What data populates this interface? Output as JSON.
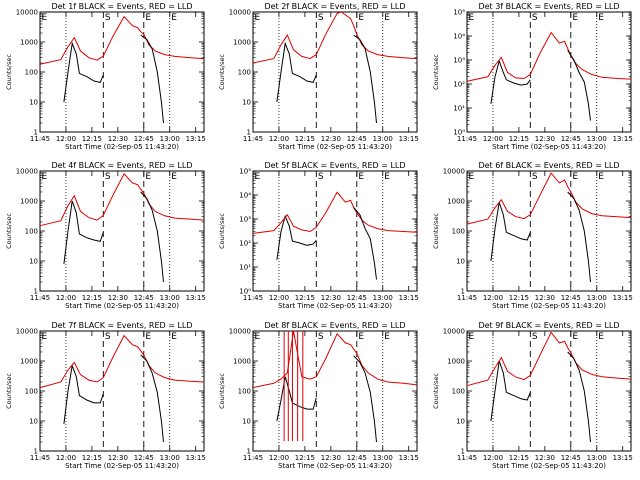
{
  "figure": {
    "xtick_labels": [
      "11:45",
      "12:00",
      "12:15",
      "12:30",
      "12:45",
      "13:00",
      "13:15"
    ],
    "xlabel": "Start Time (02-Sep-05 11:43:20)",
    "ylabel": "Counts/sec",
    "x_range_hours": [
      11.75,
      13.33
    ],
    "dotted_markers": [
      12.0,
      13.0
    ],
    "dashed_markers": [
      12.36,
      12.75
    ],
    "marker_labels": [
      "E",
      "S",
      "E",
      "E"
    ],
    "colors": {
      "events": "#000000",
      "lld": "#dd0000"
    }
  },
  "chart_data": [
    {
      "type": "line",
      "title": "Det 1f BLACK = Events, RED = LLD",
      "ylim": [
        1,
        10000
      ],
      "ytick_labels": [
        "1",
        "10",
        "100",
        "1000",
        "10000"
      ],
      "series": [
        {
          "name": "Events",
          "x": [
            11.98,
            12.02,
            12.06,
            12.1,
            12.13,
            12.2,
            12.27,
            12.33,
            12.36
          ],
          "y": [
            10,
            100,
            900,
            400,
            90,
            70,
            50,
            45,
            80
          ]
        },
        {
          "name": "LLD",
          "x": [
            11.75,
            11.95,
            12.02,
            12.08,
            12.14,
            12.22,
            12.3,
            12.36,
            12.45,
            12.56,
            12.64,
            12.69,
            12.72,
            12.75,
            12.8,
            12.86,
            12.95,
            13.05,
            13.2,
            13.33
          ],
          "y": [
            180,
            260,
            700,
            1400,
            500,
            300,
            250,
            340,
            1500,
            7000,
            3500,
            3000,
            2200,
            1800,
            800,
            500,
            380,
            330,
            300,
            280
          ]
        },
        {
          "name": "Events (decay)",
          "x": [
            12.72,
            12.78,
            12.83,
            12.88,
            12.92,
            12.94
          ],
          "y": [
            1700,
            1200,
            600,
            100,
            10,
            2
          ]
        }
      ]
    },
    {
      "type": "line",
      "title": "Det 2f BLACK = Events, RED = LLD",
      "ylim": [
        1,
        10000
      ],
      "ytick_labels": [
        "1",
        "10",
        "100",
        "1000",
        "10000"
      ],
      "series": [
        {
          "name": "Events",
          "x": [
            11.98,
            12.02,
            12.06,
            12.1,
            12.13,
            12.2,
            12.27,
            12.33,
            12.36
          ],
          "y": [
            10,
            100,
            900,
            400,
            90,
            70,
            50,
            45,
            80
          ]
        },
        {
          "name": "LLD",
          "x": [
            11.75,
            11.95,
            12.02,
            12.08,
            12.14,
            12.22,
            12.3,
            12.36,
            12.45,
            12.56,
            12.6,
            12.64,
            12.69,
            12.72,
            12.75,
            12.8,
            12.86,
            12.95,
            13.05,
            13.2,
            13.33
          ],
          "y": [
            200,
            280,
            800,
            1700,
            550,
            330,
            280,
            380,
            1800,
            9000,
            10000,
            8000,
            6000,
            3500,
            1800,
            800,
            500,
            380,
            330,
            300,
            280
          ]
        },
        {
          "name": "Events (decay)",
          "x": [
            12.72,
            12.78,
            12.83,
            12.88,
            12.92,
            12.94
          ],
          "y": [
            1700,
            1200,
            600,
            100,
            10,
            2
          ]
        }
      ]
    },
    {
      "type": "line",
      "title": "Det 3f BLACK = Events, RED = LLD",
      "ylim": [
        1,
        100000
      ],
      "ytick_labels": [
        "10⁰",
        "10¹",
        "10²",
        "10³",
        "10⁴",
        "10⁵"
      ],
      "series": [
        {
          "name": "Events",
          "x": [
            11.98,
            12.02,
            12.06,
            12.1,
            12.13,
            12.2,
            12.27,
            12.33,
            12.36
          ],
          "y": [
            15,
            200,
            900,
            300,
            150,
            110,
            90,
            100,
            150
          ]
        },
        {
          "name": "LLD",
          "x": [
            11.75,
            11.95,
            12.02,
            12.08,
            12.14,
            12.22,
            12.3,
            12.36,
            12.45,
            12.56,
            12.64,
            12.69,
            12.72,
            12.75,
            12.8,
            12.86,
            12.95,
            13.05,
            13.2,
            13.33
          ],
          "y": [
            130,
            200,
            600,
            1300,
            300,
            180,
            170,
            250,
            1800,
            14000,
            5000,
            6000,
            3000,
            1500,
            700,
            400,
            250,
            190,
            170,
            160
          ]
        },
        {
          "name": "Events (decay)",
          "x": [
            12.72,
            12.78,
            12.83,
            12.88,
            12.92,
            12.94
          ],
          "y": [
            2500,
            1000,
            300,
            120,
            15,
            3
          ]
        }
      ]
    },
    {
      "type": "line",
      "title": "Det 4f BLACK = Events, RED = LLD",
      "ylim": [
        1,
        10000
      ],
      "ytick_labels": [
        "1",
        "10",
        "100",
        "1000",
        "10000"
      ],
      "series": [
        {
          "name": "Events",
          "x": [
            11.98,
            12.02,
            12.06,
            12.1,
            12.13,
            12.2,
            12.27,
            12.33,
            12.36
          ],
          "y": [
            8,
            100,
            1000,
            400,
            80,
            60,
            50,
            45,
            90
          ]
        },
        {
          "name": "LLD",
          "x": [
            11.75,
            11.95,
            12.02,
            12.08,
            12.14,
            12.22,
            12.3,
            12.36,
            12.45,
            12.56,
            12.64,
            12.69,
            12.72,
            12.75,
            12.8,
            12.86,
            12.95,
            13.05,
            13.2,
            13.33
          ],
          "y": [
            150,
            220,
            700,
            1500,
            450,
            280,
            230,
            330,
            1500,
            8000,
            4000,
            3500,
            2500,
            1800,
            800,
            450,
            320,
            270,
            250,
            230
          ]
        },
        {
          "name": "Events (decay)",
          "x": [
            12.72,
            12.78,
            12.83,
            12.88,
            12.92,
            12.94
          ],
          "y": [
            2000,
            1200,
            500,
            100,
            10,
            2
          ]
        }
      ]
    },
    {
      "type": "line",
      "title": "Det 5f BLACK = Events, RED = LLD",
      "ylim": [
        1,
        100000
      ],
      "ytick_labels": [
        "10⁰",
        "10¹",
        "10²",
        "10³",
        "10⁴",
        "10⁵"
      ],
      "series": [
        {
          "name": "Events",
          "x": [
            11.98,
            12.02,
            12.06,
            12.1,
            12.13,
            12.2,
            12.27,
            12.33,
            12.36
          ],
          "y": [
            20,
            300,
            1300,
            500,
            120,
            100,
            80,
            90,
            130
          ]
        },
        {
          "name": "LLD",
          "x": [
            11.75,
            11.95,
            12.02,
            12.08,
            12.14,
            12.22,
            12.3,
            12.36,
            12.45,
            12.56,
            12.64,
            12.69,
            12.72,
            12.75,
            12.8,
            12.86,
            12.95,
            13.05,
            13.2,
            13.33
          ],
          "y": [
            250,
            330,
            700,
            1500,
            500,
            350,
            300,
            450,
            1800,
            13000,
            5000,
            6000,
            3000,
            1800,
            900,
            550,
            400,
            330,
            300,
            280
          ]
        },
        {
          "name": "Events (decay)",
          "x": [
            12.72,
            12.78,
            12.83,
            12.88,
            12.92,
            12.94
          ],
          "y": [
            3000,
            1500,
            400,
            150,
            15,
            3
          ]
        }
      ]
    },
    {
      "type": "line",
      "title": "Det 6f BLACK = Events, RED = LLD",
      "ylim": [
        1,
        10000
      ],
      "ytick_labels": [
        "1",
        "10",
        "100",
        "1000",
        "10000"
      ],
      "series": [
        {
          "name": "Events",
          "x": [
            11.98,
            12.02,
            12.06,
            12.1,
            12.13,
            12.2,
            12.27,
            12.33,
            12.36
          ],
          "y": [
            10,
            120,
            900,
            350,
            90,
            70,
            55,
            50,
            90
          ]
        },
        {
          "name": "LLD",
          "x": [
            11.75,
            11.95,
            12.02,
            12.08,
            12.14,
            12.22,
            12.3,
            12.36,
            12.45,
            12.56,
            12.64,
            12.69,
            12.72,
            12.75,
            12.8,
            12.86,
            12.95,
            13.05,
            13.2,
            13.33
          ],
          "y": [
            170,
            250,
            600,
            1100,
            450,
            300,
            260,
            350,
            1500,
            8500,
            4000,
            5000,
            3000,
            2000,
            900,
            550,
            380,
            320,
            300,
            280
          ]
        },
        {
          "name": "Events (decay)",
          "x": [
            12.72,
            12.78,
            12.83,
            12.88,
            12.92,
            12.94
          ],
          "y": [
            2000,
            1200,
            500,
            100,
            10,
            2
          ]
        }
      ]
    },
    {
      "type": "line",
      "title": "Det 7f BLACK = Events, RED = LLD",
      "ylim": [
        1,
        10000
      ],
      "ytick_labels": [
        "1",
        "10",
        "100",
        "1000",
        "10000"
      ],
      "series": [
        {
          "name": "Events",
          "x": [
            11.98,
            12.02,
            12.06,
            12.1,
            12.13,
            12.2,
            12.27,
            12.33,
            12.36
          ],
          "y": [
            8,
            100,
            700,
            300,
            70,
            50,
            40,
            40,
            80
          ]
        },
        {
          "name": "LLD",
          "x": [
            11.75,
            11.95,
            12.02,
            12.08,
            12.14,
            12.22,
            12.3,
            12.36,
            12.45,
            12.56,
            12.64,
            12.69,
            12.72,
            12.75,
            12.8,
            12.86,
            12.95,
            13.05,
            13.2,
            13.33
          ],
          "y": [
            130,
            200,
            500,
            900,
            350,
            230,
            200,
            280,
            1300,
            7000,
            3500,
            3000,
            2200,
            1600,
            700,
            400,
            280,
            230,
            210,
            200
          ]
        },
        {
          "name": "Events (decay)",
          "x": [
            12.72,
            12.78,
            12.83,
            12.88,
            12.92,
            12.94
          ],
          "y": [
            1600,
            1000,
            400,
            90,
            10,
            2
          ]
        }
      ]
    },
    {
      "type": "line",
      "title": "Det 8f BLACK = Events, RED = LLD",
      "ylim": [
        1,
        10000
      ],
      "ytick_labels": [
        "1",
        "10",
        "100",
        "1000",
        "10000"
      ],
      "series": [
        {
          "name": "Events",
          "x": [
            11.98,
            12.02,
            12.06,
            12.1,
            12.13,
            12.2,
            12.27,
            12.33,
            12.36
          ],
          "y": [
            10,
            50,
            300,
            100,
            40,
            30,
            25,
            25,
            60
          ]
        },
        {
          "name": "LLD",
          "x": [
            11.75,
            11.95,
            12.02,
            12.08,
            12.14,
            12.22,
            12.3,
            12.36,
            12.45,
            12.56,
            12.64,
            12.69,
            12.72,
            12.75,
            12.8,
            12.86,
            12.95,
            13.05,
            13.2,
            13.33
          ],
          "y": [
            130,
            180,
            250,
            400,
            10000,
            300,
            250,
            300,
            1200,
            8000,
            4000,
            3500,
            2500,
            1800,
            700,
            400,
            250,
            200,
            180,
            160
          ]
        },
        {
          "name": "Events (decay)",
          "x": [
            12.72,
            12.78,
            12.83,
            12.88,
            12.92,
            12.94
          ],
          "y": [
            1500,
            900,
            400,
            90,
            10,
            2
          ]
        },
        {
          "name": "LLD spikes",
          "x": [
            12.05,
            12.09,
            12.13,
            12.18,
            12.23
          ],
          "y": [
            10000,
            10000,
            10000,
            10000,
            10000
          ]
        }
      ]
    },
    {
      "type": "line",
      "title": "Det 9f BLACK = Events, RED = LLD",
      "ylim": [
        1,
        10000
      ],
      "ytick_labels": [
        "1",
        "10",
        "100",
        "1000",
        "10000"
      ],
      "series": [
        {
          "name": "Events",
          "x": [
            11.98,
            12.02,
            12.06,
            12.1,
            12.13,
            12.2,
            12.27,
            12.33,
            12.36
          ],
          "y": [
            10,
            100,
            1000,
            400,
            90,
            70,
            55,
            50,
            90
          ]
        },
        {
          "name": "LLD",
          "x": [
            11.75,
            11.95,
            12.02,
            12.08,
            12.14,
            12.22,
            12.3,
            12.36,
            12.45,
            12.56,
            12.64,
            12.69,
            12.72,
            12.75,
            12.8,
            12.86,
            12.95,
            13.05,
            13.2,
            13.33
          ],
          "y": [
            150,
            230,
            600,
            1300,
            450,
            290,
            240,
            330,
            1500,
            9000,
            4000,
            4500,
            2800,
            1900,
            850,
            500,
            360,
            300,
            270,
            250
          ]
        },
        {
          "name": "Events (decay)",
          "x": [
            12.72,
            12.78,
            12.83,
            12.88,
            12.92,
            12.94
          ],
          "y": [
            2000,
            1200,
            500,
            100,
            10,
            2
          ]
        }
      ]
    }
  ]
}
